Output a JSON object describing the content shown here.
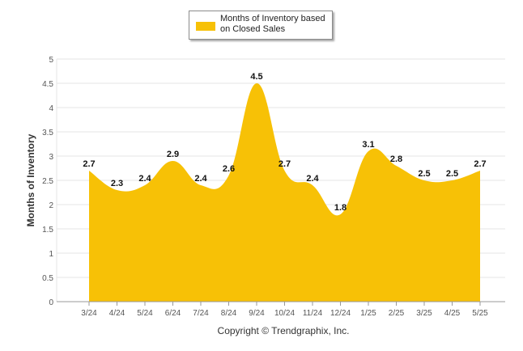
{
  "colors": {
    "area": "#F7C106",
    "grid": "#e6e6e6",
    "axis": "#999999",
    "text": "#333333"
  },
  "legend": {
    "label": "Months of Inventory based on Closed Sales"
  },
  "footer": {
    "copyright": "Copyright © Trendgraphix, Inc."
  },
  "chart_data": {
    "type": "area",
    "categories": [
      "3/24",
      "4/24",
      "5/24",
      "6/24",
      "7/24",
      "8/24",
      "9/24",
      "10/24",
      "11/24",
      "12/24",
      "1/25",
      "2/25",
      "3/25",
      "4/25",
      "5/25"
    ],
    "series": [
      {
        "name": "Months of Inventory based on Closed Sales",
        "values": [
          2.7,
          2.3,
          2.4,
          2.9,
          2.4,
          2.6,
          4.5,
          2.7,
          2.4,
          1.8,
          3.1,
          2.8,
          2.5,
          2.5,
          2.7
        ]
      }
    ],
    "data_labels": [
      "2.7",
      "2.3",
      "2.4",
      "2.9",
      "2.4",
      "2.6",
      "4.5",
      "2.7",
      "2.4",
      "1.8",
      "3.1",
      "2.8",
      "2.5",
      "2.5",
      "2.7"
    ],
    "ylabel": "Months of Inventory",
    "ylim": [
      0,
      5
    ],
    "yticks": [
      "0",
      "0.5",
      "1",
      "1.5",
      "2",
      "2.5",
      "3",
      "3.5",
      "4",
      "4.5",
      "5"
    ],
    "grid": true,
    "legend_position": "top-center",
    "curve": "smooth"
  }
}
